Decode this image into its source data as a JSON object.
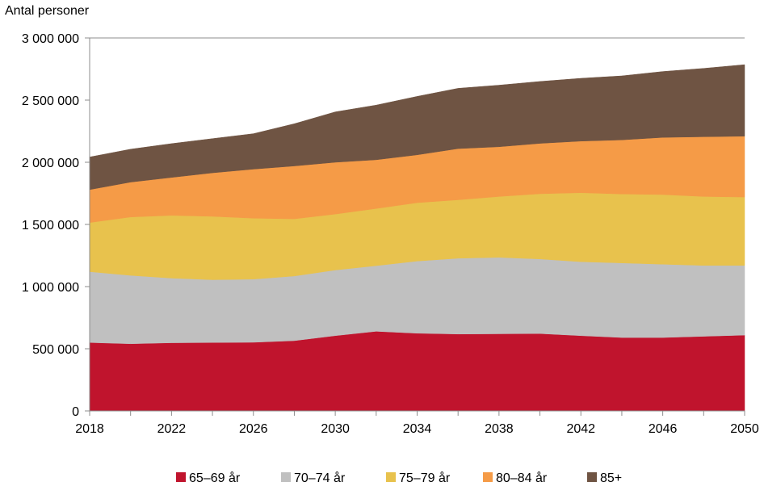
{
  "chart_data": {
    "type": "area",
    "stacked": true,
    "ylabel": "Antal personer",
    "ylim": [
      0,
      3000000
    ],
    "y_ticks": [
      0,
      500000,
      1000000,
      1500000,
      2000000,
      2500000,
      3000000
    ],
    "y_tick_labels": [
      "0",
      "500 000",
      "1 000 000",
      "1 500 000",
      "2 000 000",
      "2 500 000",
      "3 000 000"
    ],
    "x_range": [
      2018,
      2050
    ],
    "x_tick_labels": [
      "2018",
      "2022",
      "2026",
      "2030",
      "2034",
      "2038",
      "2042",
      "2046",
      "2050"
    ],
    "x_tick_values": [
      2018,
      2022,
      2026,
      2030,
      2034,
      2038,
      2042,
      2046,
      2050
    ],
    "x": [
      2018,
      2020,
      2022,
      2024,
      2026,
      2028,
      2030,
      2032,
      2034,
      2036,
      2038,
      2040,
      2042,
      2044,
      2046,
      2048,
      2050
    ],
    "series": [
      {
        "name": "65–69 år",
        "color": "#c0142d",
        "values": [
          550000,
          540000,
          548000,
          550000,
          552000,
          565000,
          605000,
          640000,
          625000,
          618000,
          620000,
          622000,
          605000,
          590000,
          590000,
          600000,
          610000
        ]
      },
      {
        "name": "70–74 år",
        "color": "#c0c0c0",
        "values": [
          570000,
          550000,
          520000,
          505000,
          508000,
          520000,
          528000,
          528000,
          580000,
          610000,
          615000,
          600000,
          595000,
          600000,
          590000,
          570000,
          560000
        ]
      },
      {
        "name": "75–79 år",
        "color": "#e8c24d",
        "values": [
          395000,
          470000,
          505000,
          510000,
          490000,
          460000,
          450000,
          460000,
          470000,
          470000,
          490000,
          525000,
          555000,
          555000,
          560000,
          555000,
          550000
        ]
      },
      {
        "name": "80–84 år",
        "color": "#f59b47",
        "values": [
          265000,
          280000,
          305000,
          350000,
          395000,
          425000,
          417000,
          392000,
          385000,
          412000,
          400000,
          405000,
          415000,
          435000,
          460000,
          480000,
          490000
        ]
      },
      {
        "name": "85+",
        "color": "#6f5443",
        "values": [
          262000,
          265000,
          272000,
          275000,
          285000,
          340000,
          405000,
          440000,
          470000,
          485000,
          495000,
          498000,
          505000,
          515000,
          530000,
          550000,
          575000
        ]
      }
    ],
    "legend_position": "bottom",
    "grid": false
  }
}
